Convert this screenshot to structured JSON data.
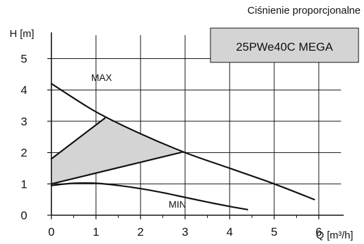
{
  "chart_data": {
    "type": "line",
    "subtitle": "Ciśnienie proporcjonalne",
    "model_label": "25PWe40C MEGA",
    "ylabel": "H [m]",
    "xlabel": "Q [m³/h]",
    "xlim": [
      0,
      6.5
    ],
    "ylim": [
      0,
      5.75
    ],
    "x_ticks": [
      0,
      1,
      2,
      3,
      4,
      5,
      6
    ],
    "y_ticks": [
      0,
      1,
      2,
      3,
      4,
      5
    ],
    "x_minor_step": 0.5,
    "grid": true,
    "colors": {
      "line": "#111111",
      "region": "#d4d4d4",
      "label_box": "#d4d4d4"
    },
    "curve_labels": {
      "max": "MAX",
      "min": "MIN"
    },
    "series": [
      {
        "id": "max",
        "x": [
          0,
          1,
          2,
          3,
          4,
          5,
          5.9
        ],
        "y": [
          4.2,
          3.3,
          2.6,
          2.0,
          1.5,
          1.0,
          0.5
        ]
      },
      {
        "id": "min",
        "x": [
          0,
          0.5,
          1.0,
          1.5,
          2.0,
          2.5,
          3.0,
          3.5,
          4.0,
          4.4
        ],
        "y": [
          0.95,
          1.02,
          1.02,
          0.95,
          0.85,
          0.72,
          0.57,
          0.42,
          0.28,
          0.18
        ]
      },
      {
        "id": "prop_upper",
        "x": [
          0,
          1.2
        ],
        "y": [
          1.8,
          3.1
        ]
      },
      {
        "id": "prop_lower",
        "x": [
          0,
          2.9
        ],
        "y": [
          1.0,
          2.0
        ]
      }
    ],
    "region": {
      "x": [
        0,
        1.2,
        2.9,
        0
      ],
      "y": [
        1.8,
        3.1,
        2.0,
        1.0
      ]
    }
  }
}
